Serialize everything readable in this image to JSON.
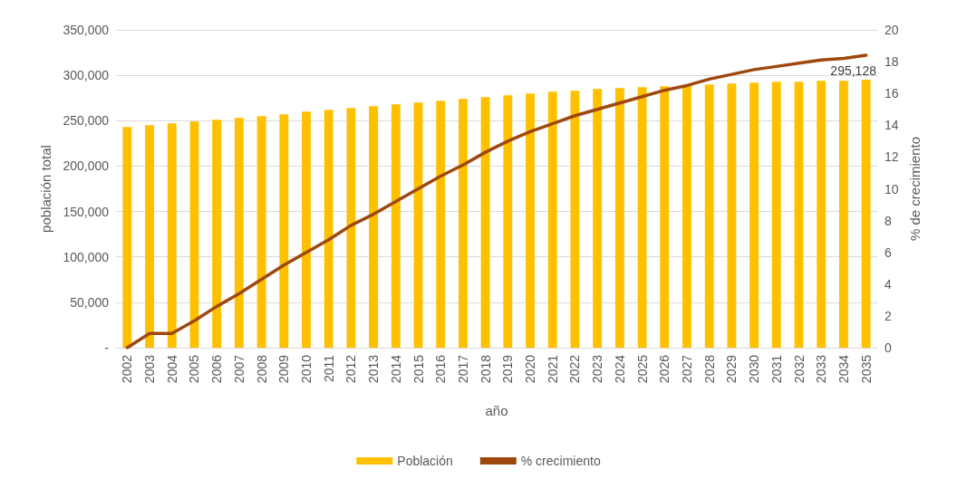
{
  "chart_data": {
    "type": "bar",
    "xlabel": "año",
    "ylabel": "población total",
    "y2label": "% de crecimiento",
    "categories": [
      "2002",
      "2003",
      "2004",
      "2005",
      "2006",
      "2007",
      "2008",
      "2009",
      "2010",
      "2011",
      "2012",
      "2013",
      "2014",
      "2015",
      "2016",
      "2017",
      "2018",
      "2019",
      "2020",
      "2021",
      "2022",
      "2023",
      "2024",
      "2025",
      "2026",
      "2027",
      "2028",
      "2029",
      "2030",
      "2031",
      "2032",
      "2033",
      "2034",
      "2035"
    ],
    "series": [
      {
        "name": "Población",
        "color": "#ffc000",
        "values": [
          243000,
          245000,
          247000,
          249000,
          251000,
          253000,
          255000,
          257000,
          260000,
          262000,
          264000,
          266000,
          268000,
          270000,
          272000,
          274000,
          276000,
          278000,
          280000,
          282000,
          283000,
          285000,
          286000,
          287000,
          288000,
          289000,
          290000,
          291000,
          292000,
          293000,
          293000,
          294000,
          294000,
          295128
        ],
        "value_labels": [
          null,
          null,
          null,
          null,
          null,
          null,
          null,
          null,
          null,
          null,
          null,
          null,
          null,
          null,
          null,
          null,
          null,
          null,
          null,
          null,
          null,
          null,
          null,
          null,
          null,
          null,
          null,
          null,
          null,
          null,
          null,
          null,
          null,
          "295,128"
        ]
      },
      {
        "name": "% crecimiento",
        "type": "line",
        "axis": "y2",
        "color": "#9e480e",
        "values": [
          0,
          0.9,
          0.9,
          1.7,
          2.6,
          3.4,
          4.3,
          5.2,
          6.0,
          6.8,
          7.7,
          8.4,
          9.2,
          10.0,
          10.8,
          11.5,
          12.3,
          13.0,
          13.6,
          14.1,
          14.6,
          15.0,
          15.4,
          15.8,
          16.2,
          16.5,
          16.9,
          17.2,
          17.5,
          17.7,
          17.9,
          18.1,
          18.2,
          18.4
        ]
      }
    ],
    "ylim": [
      0,
      350000
    ],
    "yticks": [
      {
        "value": 0,
        "label": "-"
      },
      {
        "value": 50000,
        "label": "50,000"
      },
      {
        "value": 100000,
        "label": "100,000"
      },
      {
        "value": 150000,
        "label": "150,000"
      },
      {
        "value": 200000,
        "label": "200,000"
      },
      {
        "value": 250000,
        "label": "250,000"
      },
      {
        "value": 300000,
        "label": "300,000"
      },
      {
        "value": 350000,
        "label": "350,000"
      }
    ],
    "y2lim": [
      0,
      20
    ],
    "y2ticks": [
      0,
      2,
      4,
      6,
      8,
      10,
      12,
      14,
      16,
      18,
      20
    ],
    "grid": "y",
    "legend": "bottom",
    "marker": "none",
    "line_style": "solid"
  }
}
